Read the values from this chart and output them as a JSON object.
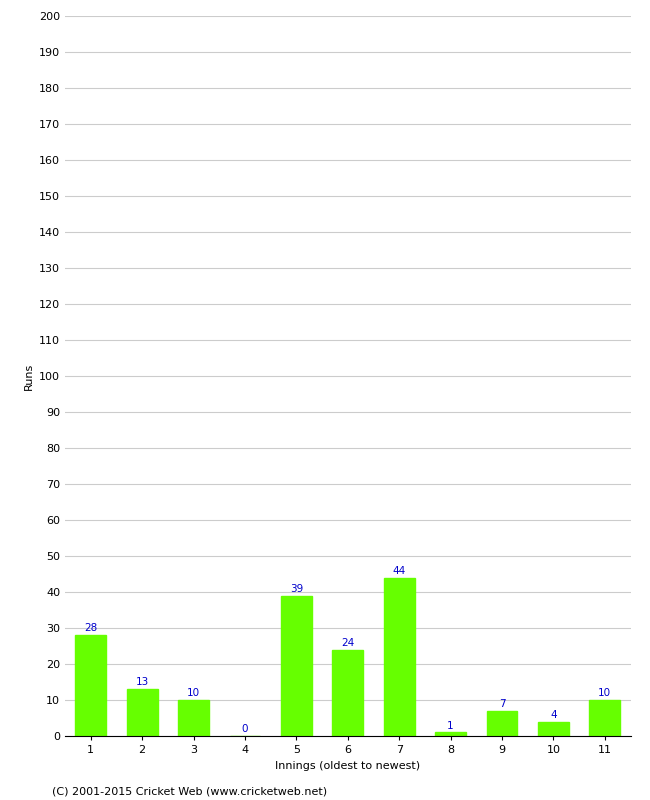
{
  "innings": [
    1,
    2,
    3,
    4,
    5,
    6,
    7,
    8,
    9,
    10,
    11
  ],
  "runs": [
    28,
    13,
    10,
    0,
    39,
    24,
    44,
    1,
    7,
    4,
    10
  ],
  "bar_color": "#66ff00",
  "bar_edge_color": "#66ff00",
  "label_color": "#0000cc",
  "xlabel": "Innings (oldest to newest)",
  "ylabel": "Runs",
  "ylim": [
    0,
    200
  ],
  "ytick_interval": 10,
  "footer": "(C) 2001-2015 Cricket Web (www.cricketweb.net)",
  "grid_color": "#cccccc",
  "background_color": "#ffffff",
  "label_fontsize": 7.5,
  "axis_fontsize": 8,
  "footer_fontsize": 8
}
